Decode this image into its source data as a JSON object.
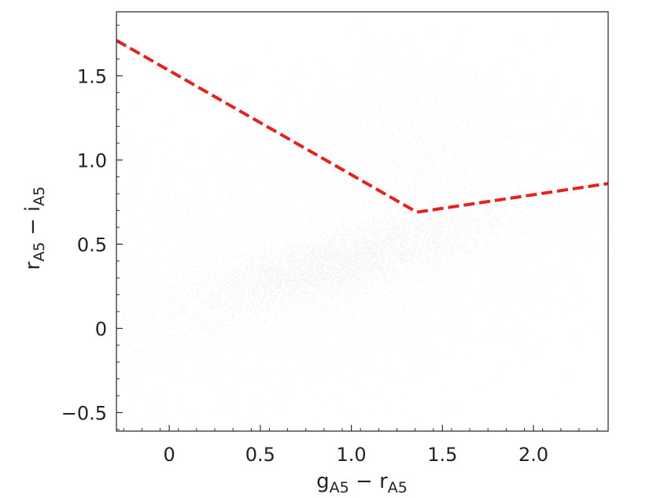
{
  "chart_data": {
    "type": "scatter",
    "xlim": [
      -0.29,
      2.41
    ],
    "ylim": [
      -0.61,
      1.88
    ],
    "xlabel": {
      "main": "g",
      "sub": "A5",
      "sep": " − ",
      "main2": "r",
      "sub2": "A5"
    },
    "ylabel": {
      "main": "r",
      "sub": "A5",
      "sep": " − ",
      "main2": "i",
      "sub2": "A5"
    },
    "x_ticks": [
      {
        "value": 0,
        "label": "0"
      },
      {
        "value": 0.5,
        "label": "0.5"
      },
      {
        "value": 1.0,
        "label": "1.0"
      },
      {
        "value": 1.5,
        "label": "1.5"
      },
      {
        "value": 2.0,
        "label": "2.0"
      }
    ],
    "y_ticks": [
      {
        "value": -0.5,
        "label": "−0.5"
      },
      {
        "value": 0,
        "label": "0"
      },
      {
        "value": 0.5,
        "label": "0.5"
      },
      {
        "value": 1.0,
        "label": "1.0"
      },
      {
        "value": 1.5,
        "label": "1.5"
      }
    ],
    "density_components": [
      {
        "cx": 0.9,
        "cy": 0.38,
        "sx": 0.5,
        "sy": 0.11,
        "slope": 0.3,
        "weight": 70
      },
      {
        "cx": 1.35,
        "cy": 1.05,
        "sx": 0.25,
        "sy": 0.25,
        "slope": 0.0,
        "weight": 6
      },
      {
        "cx": 0.8,
        "cy": 0.45,
        "sx": 0.9,
        "sy": 0.45,
        "slope": 0.2,
        "weight": 16
      }
    ],
    "point_color": "#111111",
    "cut_line": {
      "color": "#e8211c",
      "x": [
        -0.29,
        1.36,
        2.41
      ],
      "y": [
        1.71,
        0.69,
        0.86
      ]
    },
    "grid": false,
    "legend": "none"
  }
}
